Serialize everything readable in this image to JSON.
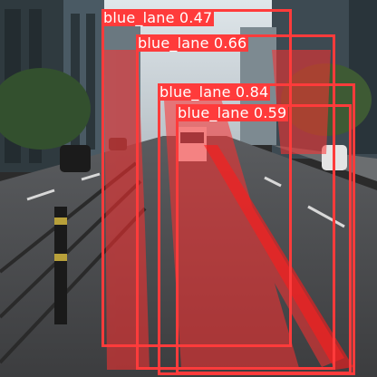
{
  "image": {
    "description_free": true,
    "mask_color": "#ff3a3a",
    "box_color": "#ff3b3b"
  },
  "detections": [
    {
      "class": "blue_lane",
      "score": "0.47",
      "label": "blue_lane 0.47"
    },
    {
      "class": "blue_lane",
      "score": "0.66",
      "label": "blue_lane 0.66"
    },
    {
      "class": "blue_lane",
      "score": "0.84",
      "label": "blue_lane 0.84"
    },
    {
      "class": "blue_lane",
      "score": "0.59",
      "label": "blue_lane 0.59"
    }
  ]
}
